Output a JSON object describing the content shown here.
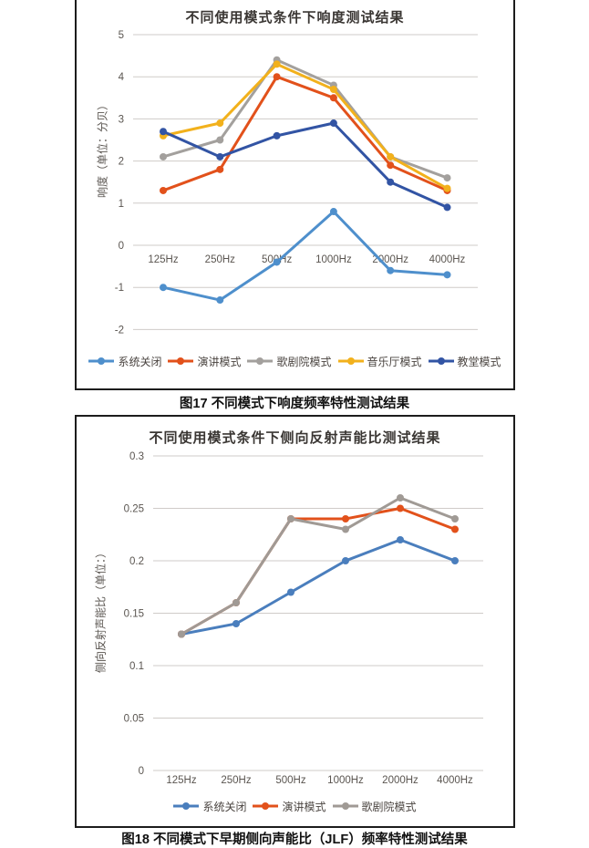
{
  "colors": {
    "border": "#1c1c1c",
    "grid": "#cfcbc8",
    "tick_text": "#5a5550",
    "title_text": "#3a3633",
    "caption_text": "#111111"
  },
  "figure17": {
    "caption": "图17  不同模式下响度频率特性测试结果"
  },
  "figure18": {
    "caption": "图18  不同模式下早期侧向声能比（JLF）频率特性测试结果"
  },
  "chart_data": [
    {
      "type": "line",
      "title": "不同使用模式条件下响度测试结果",
      "xlabel": "",
      "ylabel": "响度（单位：分贝）",
      "categories": [
        "125Hz",
        "250Hz",
        "500Hz",
        "1000Hz",
        "2000Hz",
        "4000Hz"
      ],
      "series": [
        {
          "name": "系统关闭",
          "color": "#4e8fcc",
          "values": [
            -1.0,
            -1.3,
            -0.4,
            0.8,
            -0.6,
            -0.7
          ]
        },
        {
          "name": "演讲模式",
          "color": "#e2511b",
          "values": [
            1.3,
            1.8,
            4.0,
            3.5,
            1.9,
            1.3
          ]
        },
        {
          "name": "歌剧院模式",
          "color": "#a3a09d",
          "values": [
            2.1,
            2.5,
            4.4,
            3.8,
            2.1,
            1.6
          ]
        },
        {
          "name": "音乐厅模式",
          "color": "#f2b11c",
          "values": [
            2.6,
            2.9,
            4.3,
            3.7,
            2.1,
            1.35
          ]
        },
        {
          "name": "教堂模式",
          "color": "#3254a4",
          "values": [
            2.7,
            2.1,
            2.6,
            2.9,
            1.5,
            0.9
          ]
        }
      ],
      "ylim": [
        -2,
        5
      ],
      "yticks": [
        5,
        4,
        3,
        2,
        1,
        0,
        -1,
        -2
      ],
      "grid": true,
      "legend_position": "bottom"
    },
    {
      "type": "line",
      "title": "不同使用模式条件下侧向反射声能比测试结果",
      "xlabel": "",
      "ylabel": "侧向反射声能比（单位：）",
      "categories": [
        "125Hz",
        "250Hz",
        "500Hz",
        "1000Hz",
        "2000Hz",
        "4000Hz"
      ],
      "series": [
        {
          "name": "系统关闭",
          "color": "#4a7ebd",
          "values": [
            0.13,
            0.14,
            0.17,
            0.2,
            0.22,
            0.2
          ]
        },
        {
          "name": "演讲模式",
          "color": "#e2511b",
          "values": [
            0.13,
            0.16,
            0.24,
            0.24,
            0.25,
            0.23
          ]
        },
        {
          "name": "歌剧院模式",
          "color": "#a09a95",
          "values": [
            0.13,
            0.16,
            0.24,
            0.23,
            0.26,
            0.24
          ]
        }
      ],
      "ylim": [
        0,
        0.3
      ],
      "yticks": [
        0.3,
        0.25,
        0.2,
        0.15,
        0.1,
        0.05,
        0
      ],
      "grid": true,
      "legend_position": "bottom"
    }
  ]
}
